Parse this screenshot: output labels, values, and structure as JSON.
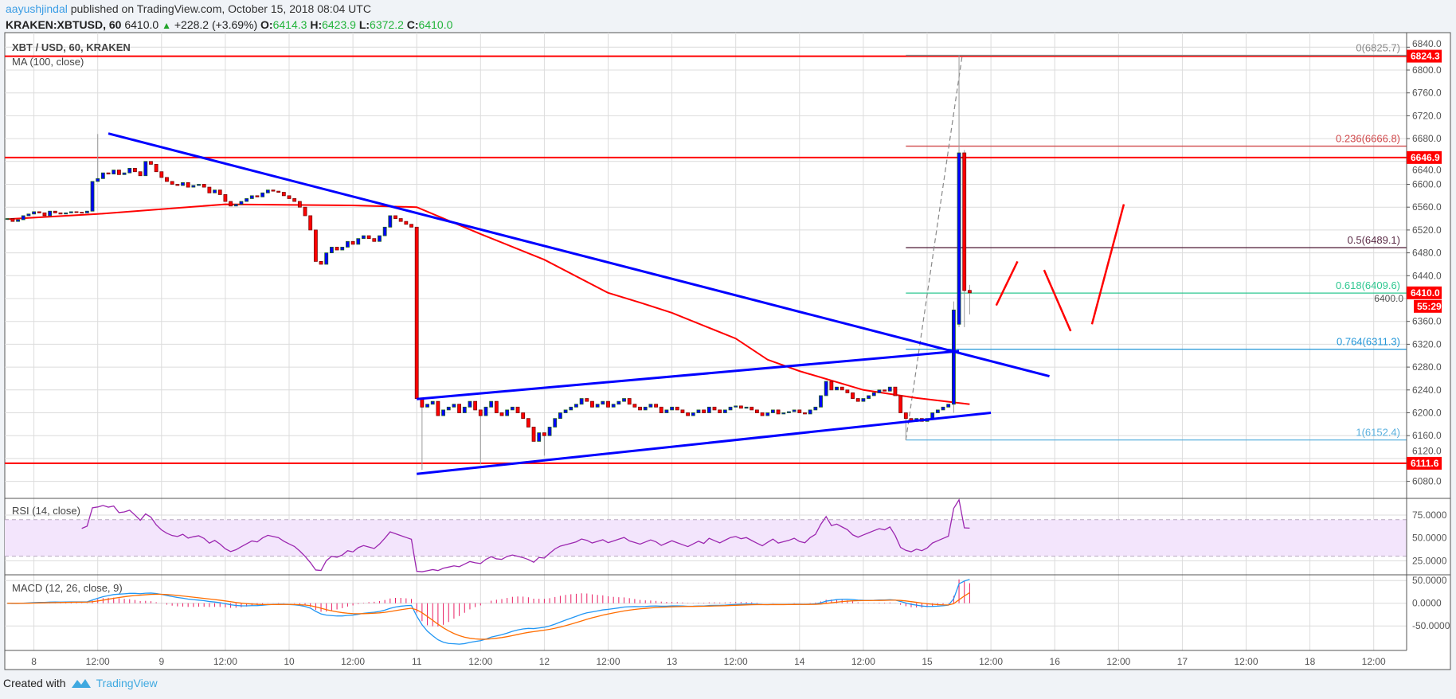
{
  "header": {
    "author": "aayushjindal",
    "published": "published on TradingView.com, October 15, 2018 08:04 UTC",
    "symbol": "KRAKEN:XBTUSD, 60",
    "last": "6410.0",
    "change": "+228.2 (+3.69%)",
    "o_label": "O:",
    "o": "6414.3",
    "h_label": "H:",
    "h": "6423.9",
    "l_label": "L:",
    "l": "6372.2",
    "c_label": "C:",
    "c": "6410.0"
  },
  "legend": {
    "main": "XBT / USD, 60, KRAKEN",
    "ma": "MA (100, close)",
    "rsi": "RSI (14, close)",
    "macd": "MACD (12, 26, close, 9)"
  },
  "footer": {
    "created_with": "Created with",
    "brand": "TradingView"
  },
  "colors": {
    "up_body": "#0000ff",
    "up_border": "#1b5e20",
    "down_body": "#ff0000",
    "down_border": "#7a0000",
    "ma": "#ff0000",
    "trendline": "#0000ff",
    "hline": "#ff0000",
    "rsi": "#9c27b0",
    "rsi_band": "#f3e5fc",
    "macd": "#2196f3",
    "signal": "#ff6d00",
    "hist": "#e91e63",
    "grid": "#dcdcdc"
  },
  "chart_data": {
    "type": "candlestick",
    "symbol": "XBT / USD",
    "interval": "60",
    "start": "2018-10-07 19:00",
    "closes": [
      6540,
      6535,
      6538,
      6545,
      6548,
      6552,
      6550,
      6545,
      6553,
      6550,
      6548,
      6550,
      6552,
      6551,
      6550,
      6553,
      6605,
      6610,
      6620,
      6618,
      6625,
      6617,
      6620,
      6628,
      6622,
      6615,
      6640,
      6635,
      6622,
      6612,
      6605,
      6600,
      6598,
      6603,
      6595,
      6598,
      6600,
      6595,
      6585,
      6590,
      6582,
      6570,
      6562,
      6565,
      6570,
      6575,
      6580,
      6578,
      6585,
      6590,
      6588,
      6586,
      6580,
      6575,
      6570,
      6560,
      6545,
      6520,
      6465,
      6460,
      6480,
      6490,
      6485,
      6490,
      6500,
      6495,
      6505,
      6510,
      6505,
      6500,
      6510,
      6525,
      6545,
      6540,
      6535,
      6530,
      6525,
      6225,
      6210,
      6215,
      6220,
      6195,
      6205,
      6210,
      6215,
      6200,
      6210,
      6220,
      6205,
      6195,
      6210,
      6220,
      6200,
      6195,
      6205,
      6210,
      6200,
      6190,
      6175,
      6150,
      6165,
      6160,
      6175,
      6190,
      6200,
      6205,
      6210,
      6215,
      6225,
      6220,
      6210,
      6215,
      6220,
      6210,
      6215,
      6220,
      6225,
      6215,
      6210,
      6205,
      6210,
      6215,
      6210,
      6200,
      6205,
      6210,
      6205,
      6200,
      6195,
      6200,
      6205,
      6200,
      6210,
      6205,
      6200,
      6205,
      6210,
      6212,
      6208,
      6210,
      6205,
      6200,
      6195,
      6200,
      6205,
      6198,
      6200,
      6202,
      6205,
      6200,
      6198,
      6205,
      6210,
      6230,
      6255,
      6240,
      6245,
      6240,
      6235,
      6225,
      6220,
      6225,
      6230,
      6235,
      6240,
      6238,
      6245,
      6230,
      6200,
      6190,
      6185,
      6190,
      6185,
      6190,
      6200,
      6205,
      6210,
      6215,
      6380,
      6655,
      6414,
      6410
    ],
    "extremes": {
      "2018-10-08 12:00": {
        "h": 6688
      },
      "2018-10-11 01:00": {
        "l": 6100
      },
      "2018-10-11 12:00": {
        "l": 6110
      },
      "2018-10-12 00:00": {
        "l": 6125
      },
      "2018-10-14 20:00": {
        "l": 6152.4
      },
      "2018-10-15 05:00": {
        "h": 6395,
        "l": 6200
      },
      "2018-10-15 06:00": {
        "o": 6355,
        "h": 6825.7,
        "l": 6350
      },
      "2018-10-15 07:00": {
        "h": 6660,
        "l": 6350
      },
      "2018-10-15 08:00": {
        "o": 6414.3,
        "h": 6423.9,
        "l": 6372.2,
        "c": 6410.0
      }
    },
    "ma100": [
      [
        "2018-10-07 19:00",
        6539
      ],
      [
        "2018-10-08 12:00",
        6548
      ],
      [
        "2018-10-09 12:00",
        6565
      ],
      [
        "2018-10-10 12:00",
        6563
      ],
      [
        "2018-10-11 00:00",
        6560
      ],
      [
        "2018-10-11 12:00",
        6513
      ],
      [
        "2018-10-12 00:00",
        6468
      ],
      [
        "2018-10-12 12:00",
        6410
      ],
      [
        "2018-10-12 18:00",
        6393
      ],
      [
        "2018-10-13 00:00",
        6375
      ],
      [
        "2018-10-13 12:00",
        6330
      ],
      [
        "2018-10-13 18:00",
        6293
      ],
      [
        "2018-10-14 00:00",
        6273
      ],
      [
        "2018-10-14 12:00",
        6240
      ],
      [
        "2018-10-14 22:00",
        6226
      ],
      [
        "2018-10-15 08:00",
        6215
      ]
    ],
    "price_axis": {
      "min": 6080,
      "max": 6840,
      "step": 40,
      "ticks": [
        "6840.0",
        "6800.0",
        "6760.0",
        "6720.0",
        "6680.0",
        "6640.0",
        "6600.0",
        "6560.0",
        "6520.0",
        "6480.0",
        "6440.0",
        "6400.0",
        "6360.0",
        "6320.0",
        "6280.0",
        "6240.0",
        "6200.0",
        "6160.0",
        "6120.0",
        "6080.0"
      ]
    },
    "time_axis": {
      "first": "2018-10-08 00:00",
      "step_hours": 12,
      "labels": [
        "8",
        "12:00",
        "9",
        "12:00",
        "10",
        "12:00",
        "11",
        "12:00",
        "12",
        "12:00",
        "13",
        "12:00",
        "14",
        "12:00",
        "15",
        "12:00",
        "16",
        "12:00",
        "17",
        "12:00",
        "18",
        "12:00"
      ]
    },
    "horizontal_lines": [
      {
        "price": 6824.3,
        "label": "6824.3"
      },
      {
        "price": 6646.9,
        "label": "6646.9"
      },
      {
        "price": 6111.6,
        "label": "6111.6"
      }
    ],
    "last_price_label": "6410.0",
    "countdown": "55:29",
    "fibonacci": {
      "from": "2018-10-14 20:00",
      "levels": [
        {
          "ratio": "0",
          "price": 6825.7,
          "label": "0(6825.7)",
          "color": "#888888"
        },
        {
          "ratio": "0.236",
          "price": 6666.8,
          "label": "0.236(6666.8)",
          "color": "#d0484a"
        },
        {
          "ratio": "0.5",
          "price": 6489.1,
          "label": "0.5(6489.1)",
          "color": "#5a2a45"
        },
        {
          "ratio": "0.618",
          "price": 6409.6,
          "label": "0.618(6409.6)",
          "color": "#2ec790"
        },
        {
          "ratio": "0.764",
          "price": 6311.3,
          "label": "0.764(6311.3)",
          "color": "#2196d8"
        },
        {
          "ratio": "1",
          "price": 6152.4,
          "label": "1(6152.4)",
          "color": "#5ab0de"
        }
      ]
    },
    "trendlines": [
      {
        "from": [
          "2018-10-08 14:00",
          6689
        ],
        "to": [
          "2018-10-15 23:00",
          6264
        ]
      },
      {
        "from": [
          "2018-10-11 00:00",
          6224
        ],
        "to": [
          "2018-10-15 06:00",
          6308
        ]
      },
      {
        "from": [
          "2018-10-11 00:00",
          6093
        ],
        "to": [
          "2018-10-15 12:00",
          6200
        ]
      }
    ],
    "projection_lines": [
      {
        "from": [
          "2018-10-15 13:00",
          6388
        ],
        "to": [
          "2018-10-15 17:00",
          6465
        ]
      },
      {
        "from": [
          "2018-10-15 22:00",
          6450
        ],
        "to": [
          "2018-10-16 03:00",
          6343
        ]
      },
      {
        "from": [
          "2018-10-16 07:00",
          6355
        ],
        "to": [
          "2018-10-16 13:00",
          6565
        ]
      }
    ],
    "rsi": {
      "period": 14,
      "axis_ticks": [
        "75.0000",
        "50.0000",
        "25.0000"
      ],
      "band": [
        30,
        70
      ]
    },
    "macd": {
      "fast": 12,
      "slow": 26,
      "signal": 9,
      "axis_ticks": [
        "50.0000",
        "0.0000",
        "-50.0000"
      ]
    }
  }
}
